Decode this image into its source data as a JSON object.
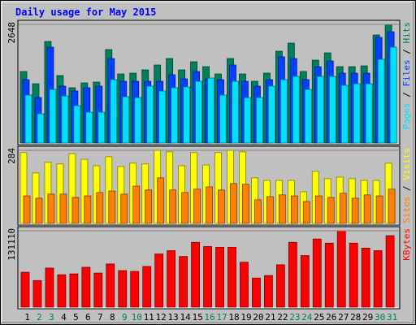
{
  "chart_data": [
    {
      "type": "bar",
      "title": "Daily usage for May 2015",
      "legend_separator": " / ",
      "ylim": [
        0,
        2648
      ],
      "yticks": [
        2648
      ],
      "series": [
        {
          "name": "Hits",
          "color": "#00805c",
          "values": [
            1596,
            1323,
            2266,
            1505,
            1233,
            1341,
            1360,
            2085,
            1541,
            1559,
            1632,
            1740,
            1885,
            1632,
            1813,
            1704,
            1541,
            1885,
            1541,
            1378,
            1559,
            2049,
            2230,
            1596,
            1849,
            2012,
            1704,
            1704,
            1722,
            2411,
            2648
          ]
        },
        {
          "name": "Files",
          "color": "#0040ff",
          "values": [
            1414,
            1015,
            2139,
            1269,
            1160,
            1233,
            1269,
            1885,
            1378,
            1378,
            1378,
            1378,
            1523,
            1432,
            1595,
            1432,
            1414,
            1740,
            1378,
            1269,
            1414,
            1922,
            1885,
            1414,
            1704,
            1831,
            1559,
            1559,
            1559,
            2357,
            2484
          ]
        },
        {
          "name": "Pages",
          "color": "#00e0ff",
          "values": [
            1070,
            653,
            1197,
            1051,
            834,
            689,
            689,
            1414,
            1033,
            1015,
            1269,
            1160,
            1233,
            1251,
            1378,
            1450,
            1070,
            1378,
            1015,
            1015,
            1269,
            1414,
            1487,
            1197,
            1487,
            1487,
            1287,
            1323,
            1323,
            1868,
            2139
          ]
        }
      ]
    },
    {
      "type": "bar",
      "legend_separator": " / ",
      "ylim": [
        0,
        284
      ],
      "yticks": [
        284
      ],
      "series": [
        {
          "name": "Visits",
          "color": "#ffff00",
          "values": [
            275,
            196,
            237,
            231,
            271,
            249,
            224,
            259,
            221,
            234,
            231,
            284,
            278,
            224,
            275,
            227,
            275,
            284,
            278,
            177,
            167,
            167,
            167,
            123,
            202,
            174,
            180,
            174,
            167,
            167,
            234
          ]
        },
        {
          "name": "Sites",
          "color": "#ff8000",
          "values": [
            107,
            98,
            114,
            114,
            101,
            107,
            120,
            126,
            114,
            145,
            130,
            177,
            130,
            120,
            133,
            142,
            130,
            155,
            152,
            92,
            104,
            111,
            107,
            85,
            107,
            101,
            117,
            98,
            111,
            107,
            133
          ]
        }
      ]
    },
    {
      "type": "bar",
      "ylim": [
        0,
        131110
      ],
      "yticks": [
        131110
      ],
      "series": [
        {
          "name": "KBytes",
          "color": "#ff0000",
          "values": [
            59860,
            45600,
            67000,
            55600,
            57000,
            68400,
            58400,
            74100,
            62700,
            61300,
            69800,
            91200,
            96900,
            86900,
            111200,
            104000,
            102600,
            102600,
            77000,
            49900,
            54200,
            72700,
            111200,
            88400,
            116900,
            109800,
            131110,
            109800,
            101200,
            96900,
            122600
          ]
        }
      ],
      "categories": [
        "1",
        "2",
        "3",
        "4",
        "5",
        "6",
        "7",
        "8",
        "9",
        "10",
        "11",
        "12",
        "13",
        "14",
        "15",
        "16",
        "17",
        "18",
        "19",
        "20",
        "21",
        "22",
        "23",
        "24",
        "25",
        "26",
        "27",
        "28",
        "29",
        "30",
        "31"
      ],
      "category_colors": [
        "#000000",
        "#00805c",
        "#00805c",
        "#000000",
        "#000000",
        "#000000",
        "#000000",
        "#000000",
        "#00805c",
        "#00805c",
        "#000000",
        "#000000",
        "#000000",
        "#000000",
        "#000000",
        "#00805c",
        "#00805c",
        "#000000",
        "#000000",
        "#000000",
        "#000000",
        "#000000",
        "#00805c",
        "#00805c",
        "#000000",
        "#000000",
        "#000000",
        "#000000",
        "#000000",
        "#00805c",
        "#00805c"
      ]
    }
  ]
}
